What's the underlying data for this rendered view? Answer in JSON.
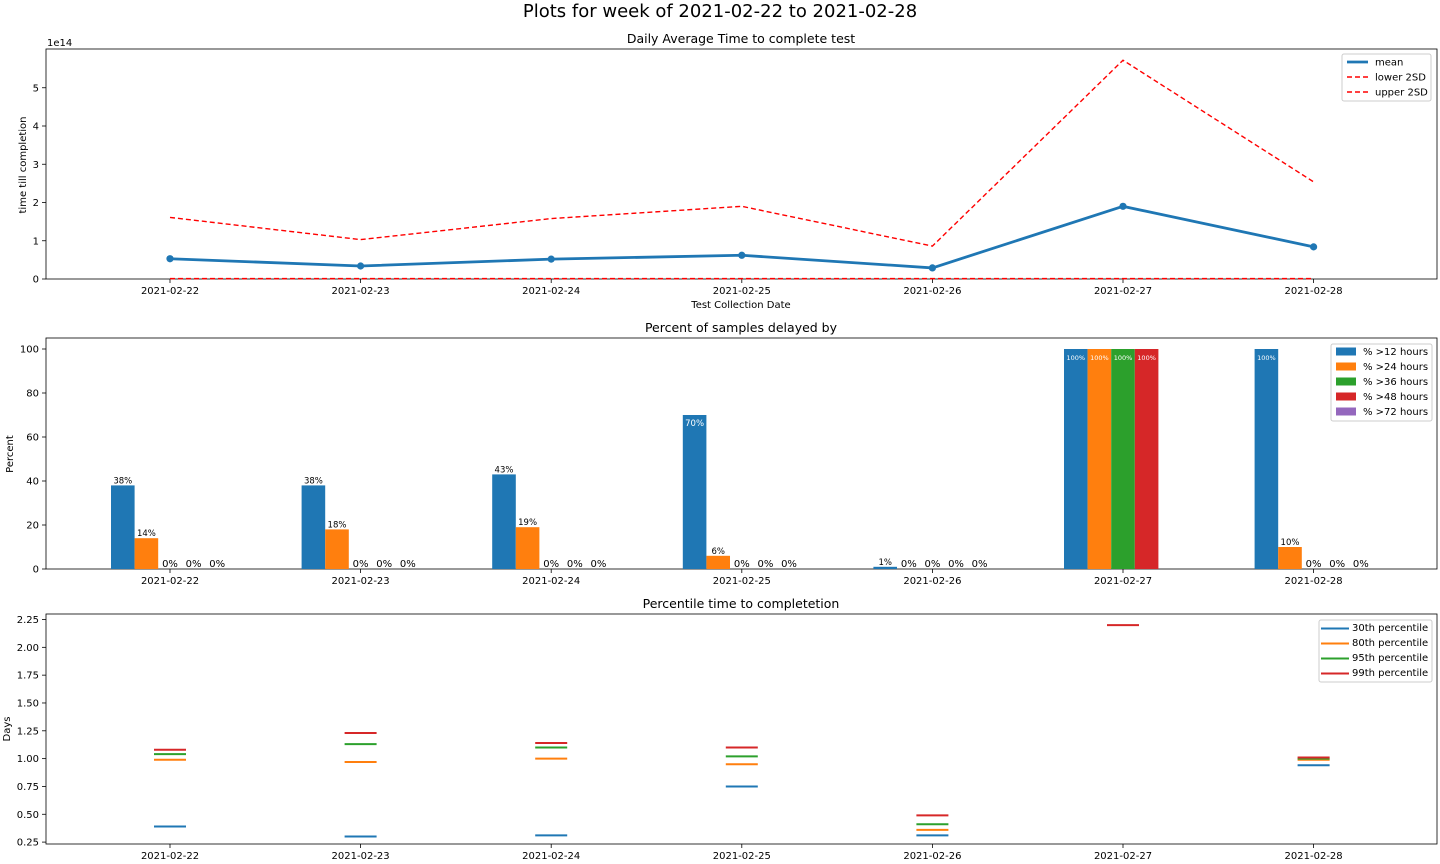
{
  "figure": {
    "suptitle": "Plots for week of 2021-02-22 to 2021-02-28"
  },
  "chart_data": [
    {
      "type": "line",
      "title": "Daily Average Time to complete test",
      "xlabel": "Test Collection Date",
      "ylabel": "time till completion",
      "offset_text": "1e14",
      "x": [
        "2021-02-22",
        "2021-02-23",
        "2021-02-24",
        "2021-02-25",
        "2021-02-26",
        "2021-02-27",
        "2021-02-28"
      ],
      "y_ticks": [
        0,
        1,
        2,
        3,
        4,
        5
      ],
      "ylim": [
        0,
        6
      ],
      "legend_position": "upper right",
      "series": [
        {
          "name": "mean",
          "color": "#1f77b4",
          "style": "solid-markers",
          "values": [
            0.53,
            0.34,
            0.52,
            0.62,
            0.29,
            1.9,
            0.84
          ]
        },
        {
          "name": "lower 2SD",
          "color": "#ff0000",
          "style": "dashed",
          "values": [
            0.01,
            0.01,
            0.01,
            0.01,
            0.01,
            0.01,
            0.01
          ]
        },
        {
          "name": "upper 2SD",
          "color": "#ff0000",
          "style": "dashed",
          "values": [
            1.61,
            1.03,
            1.58,
            1.9,
            0.86,
            5.72,
            2.54
          ]
        }
      ]
    },
    {
      "type": "bar",
      "title": "Percent of samples delayed by",
      "ylabel": "Percent",
      "categories": [
        "2021-02-22",
        "2021-02-23",
        "2021-02-24",
        "2021-02-25",
        "2021-02-26",
        "2021-02-27",
        "2021-02-28"
      ],
      "y_ticks": [
        0,
        20,
        40,
        60,
        80,
        100
      ],
      "ylim": [
        0,
        105
      ],
      "legend_position": "upper right",
      "series": [
        {
          "name": "% >12 hours",
          "color": "#1f77b4",
          "values": [
            38,
            38,
            43,
            70,
            1,
            100,
            100
          ],
          "labels": [
            "38%",
            "38%",
            "43%",
            "70%",
            "1%",
            "100%",
            "100%"
          ]
        },
        {
          "name": "% >24 hours",
          "color": "#ff7f0e",
          "values": [
            14,
            18,
            19,
            6,
            0,
            100,
            10
          ],
          "labels": [
            "14%",
            "18%",
            "19%",
            "6%",
            "0%",
            "100%",
            "10%"
          ]
        },
        {
          "name": "% >36 hours",
          "color": "#2ca02c",
          "values": [
            0,
            0,
            0,
            0,
            0,
            100,
            0
          ],
          "labels": [
            "0%",
            "0%",
            "0%",
            "0%",
            "0%",
            "100%",
            "0%"
          ]
        },
        {
          "name": "% >48 hours",
          "color": "#d62728",
          "values": [
            0,
            0,
            0,
            0,
            0,
            100,
            0
          ],
          "labels": [
            "0%",
            "0%",
            "0%",
            "0%",
            "0%",
            "100%",
            "0%"
          ]
        },
        {
          "name": "% >72 hours",
          "color": "#9467bd",
          "values": [
            0,
            0,
            0,
            0,
            0,
            null,
            0
          ],
          "labels": [
            "0%",
            "0%",
            "0%",
            "0%",
            "0%",
            "",
            "0%"
          ]
        }
      ]
    },
    {
      "type": "scatter",
      "title": "Percentile time to completetion",
      "ylabel": "Days",
      "x": [
        "2021-02-22",
        "2021-02-23",
        "2021-02-24",
        "2021-02-25",
        "2021-02-26",
        "2021-02-27",
        "2021-02-28"
      ],
      "y_ticks": [
        "0.25",
        "0.50",
        "0.75",
        "1.00",
        "1.25",
        "1.50",
        "1.75",
        "2.00",
        "2.25"
      ],
      "ylim": [
        0.21,
        2.31
      ],
      "marker": "horizontal line",
      "legend_position": "upper right",
      "series": [
        {
          "name": "30th percentile",
          "color": "#1f77b4",
          "values": [
            0.39,
            0.3,
            0.31,
            0.75,
            0.31,
            null,
            0.94
          ]
        },
        {
          "name": "80th percentile",
          "color": "#ff7f0e",
          "values": [
            0.99,
            0.97,
            1.0,
            0.95,
            0.36,
            null,
            0.99
          ]
        },
        {
          "name": "95th percentile",
          "color": "#2ca02c",
          "values": [
            1.04,
            1.13,
            1.1,
            1.02,
            0.41,
            null,
            1.0
          ]
        },
        {
          "name": "99th percentile",
          "color": "#d62728",
          "values": [
            1.08,
            1.23,
            1.14,
            1.1,
            0.49,
            2.2,
            1.01
          ]
        }
      ]
    }
  ]
}
